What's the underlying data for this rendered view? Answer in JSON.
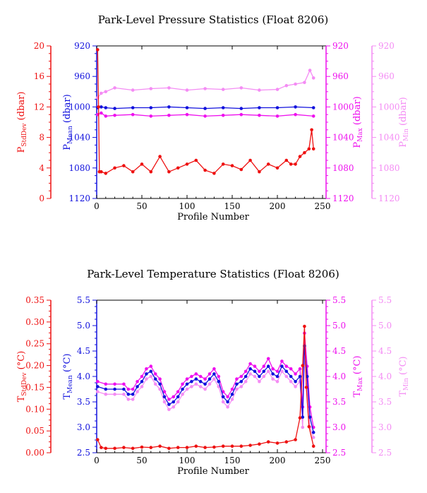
{
  "colors": {
    "stddev": "#ee1111",
    "mean": "#1111dd",
    "max": "#ee11ee",
    "min": "#f48cf4"
  },
  "chart_data": [
    {
      "type": "line",
      "title": "Park-Level Pressure Statistics (Float 8206)",
      "xlabel": "Profile Number",
      "xlim": [
        0,
        250
      ],
      "xticks": [
        "0",
        "50",
        "100",
        "150",
        "200",
        "250"
      ],
      "axes": {
        "stddev": {
          "label_main": "P",
          "label_sub": "StdDev",
          "label_unit": " (dbar)",
          "ylim": [
            0,
            20
          ],
          "ticks": [
            "0",
            "4",
            "8",
            "12",
            "16",
            "20"
          ]
        },
        "mean": {
          "label_main": "P",
          "label_sub": "Mean",
          "label_unit": " (dbar)",
          "ylim": [
            1120,
            920
          ],
          "ticks": [
            "1120",
            "1080",
            "1040",
            "1000",
            "960",
            "920"
          ]
        },
        "max": {
          "label_main": "P",
          "label_sub": "Max",
          "label_unit": " (dbar)",
          "ylim": [
            1120,
            920
          ],
          "ticks": [
            "1120",
            "1080",
            "1040",
            "1000",
            "960",
            "920"
          ]
        },
        "min": {
          "label_main": "P",
          "label_sub": "Min",
          "label_unit": " (dbar)",
          "ylim": [
            1120,
            920
          ],
          "ticks": [
            "1120",
            "1080",
            "1040",
            "1000",
            "960",
            "920"
          ]
        }
      },
      "series": [
        {
          "key": "stddev",
          "x": [
            1,
            2,
            3,
            5,
            10,
            20,
            30,
            40,
            50,
            60,
            70,
            80,
            90,
            100,
            110,
            120,
            130,
            140,
            150,
            160,
            170,
            180,
            190,
            200,
            210,
            215,
            220,
            225,
            230,
            235,
            238,
            240
          ],
          "values": [
            19.5,
            12,
            3.5,
            3.5,
            3.3,
            4,
            4.3,
            3.5,
            4.5,
            3.5,
            5.5,
            3.5,
            4,
            4.5,
            5,
            3.7,
            3.3,
            4.5,
            4.3,
            3.8,
            5,
            3.5,
            4.5,
            4,
            5,
            4.5,
            4.5,
            5.5,
            6,
            6.5,
            9,
            6.5
          ]
        },
        {
          "key": "mean",
          "x": [
            1,
            5,
            10,
            20,
            40,
            60,
            80,
            100,
            120,
            140,
            160,
            180,
            200,
            220,
            240
          ],
          "values": [
            1001,
            1000,
            1001,
            1002,
            1001,
            1001,
            1000,
            1001,
            1002,
            1001,
            1002,
            1001,
            1001,
            1000,
            1001
          ]
        },
        {
          "key": "max",
          "x": [
            1,
            5,
            10,
            20,
            40,
            60,
            80,
            100,
            120,
            140,
            160,
            180,
            200,
            220,
            240
          ],
          "values": [
            1010,
            1008,
            1012,
            1011,
            1010,
            1012,
            1011,
            1010,
            1012,
            1011,
            1010,
            1011,
            1012,
            1010,
            1012
          ]
        },
        {
          "key": "min",
          "x": [
            1,
            5,
            10,
            20,
            40,
            60,
            80,
            100,
            120,
            140,
            160,
            180,
            200,
            210,
            220,
            230,
            236,
            240
          ],
          "values": [
            988,
            982,
            980,
            975,
            978,
            976,
            975,
            978,
            976,
            977,
            975,
            978,
            977,
            972,
            970,
            968,
            952,
            962
          ]
        }
      ]
    },
    {
      "type": "line",
      "title": "Park-Level Temperature Statistics (Float 8206)",
      "xlabel": "Profile Number",
      "xlim": [
        0,
        250
      ],
      "xticks": [
        "0",
        "50",
        "100",
        "150",
        "200",
        "250"
      ],
      "axes": {
        "stddev": {
          "label_main": "T",
          "label_sub": "StdDev",
          "label_unit": " (°C)",
          "ylim": [
            0,
            0.35
          ],
          "ticks": [
            "0.00",
            "0.05",
            "0.10",
            "0.15",
            "0.20",
            "0.25",
            "0.30",
            "0.35"
          ]
        },
        "mean": {
          "label_main": "T",
          "label_sub": "Mean",
          "label_unit": " (°C)",
          "ylim": [
            2.5,
            5.5
          ],
          "ticks": [
            "2.5",
            "3.0",
            "3.5",
            "4.0",
            "4.5",
            "5.0",
            "5.5"
          ]
        },
        "max": {
          "label_main": "T",
          "label_sub": "Max",
          "label_unit": " (°C)",
          "ylim": [
            2.5,
            5.5
          ],
          "ticks": [
            "2.5",
            "3.0",
            "3.5",
            "4.0",
            "4.5",
            "5.0",
            "5.5"
          ]
        },
        "min": {
          "label_main": "T",
          "label_sub": "Min",
          "label_unit": " (°C)",
          "ylim": [
            2.5,
            5.5
          ],
          "ticks": [
            "2.5",
            "3.0",
            "3.5",
            "4.0",
            "4.5",
            "5.0",
            "5.5"
          ]
        }
      },
      "series": [
        {
          "key": "stddev",
          "x": [
            1,
            5,
            10,
            20,
            30,
            40,
            50,
            60,
            70,
            80,
            90,
            100,
            110,
            120,
            130,
            140,
            150,
            160,
            170,
            180,
            190,
            200,
            210,
            220,
            225,
            228,
            230,
            232,
            235,
            240
          ],
          "values": [
            0.03,
            0.012,
            0.01,
            0.01,
            0.012,
            0.01,
            0.013,
            0.012,
            0.015,
            0.01,
            0.012,
            0.012,
            0.015,
            0.012,
            0.013,
            0.015,
            0.015,
            0.015,
            0.017,
            0.02,
            0.025,
            0.022,
            0.025,
            0.03,
            0.08,
            0.2,
            0.29,
            0.15,
            0.06,
            0.015
          ]
        },
        {
          "key": "mean",
          "x": [
            1,
            10,
            20,
            30,
            35,
            40,
            45,
            50,
            55,
            60,
            65,
            70,
            75,
            80,
            85,
            90,
            95,
            100,
            105,
            110,
            115,
            120,
            125,
            130,
            135,
            140,
            145,
            150,
            155,
            160,
            165,
            170,
            175,
            180,
            185,
            190,
            195,
            200,
            205,
            210,
            215,
            220,
            225,
            228,
            230,
            233,
            236,
            240
          ],
          "values": [
            3.8,
            3.75,
            3.75,
            3.75,
            3.65,
            3.65,
            3.8,
            3.9,
            4.05,
            4.1,
            3.95,
            3.85,
            3.6,
            3.45,
            3.5,
            3.6,
            3.75,
            3.85,
            3.9,
            3.95,
            3.9,
            3.85,
            3.95,
            4.05,
            3.9,
            3.6,
            3.5,
            3.65,
            3.85,
            3.9,
            4.0,
            4.15,
            4.1,
            4.0,
            4.1,
            4.2,
            4.05,
            4.0,
            4.2,
            4.1,
            4.0,
            3.9,
            4.0,
            3.2,
            4.6,
            4.0,
            3.2,
            2.9
          ]
        },
        {
          "key": "max",
          "x": [
            1,
            10,
            20,
            30,
            35,
            40,
            45,
            50,
            55,
            60,
            65,
            70,
            75,
            80,
            85,
            90,
            95,
            100,
            105,
            110,
            115,
            120,
            125,
            130,
            135,
            140,
            145,
            150,
            155,
            160,
            165,
            170,
            175,
            180,
            185,
            190,
            195,
            200,
            205,
            210,
            215,
            220,
            225,
            228,
            230,
            233,
            236,
            240
          ],
          "values": [
            3.9,
            3.85,
            3.85,
            3.85,
            3.75,
            3.75,
            3.9,
            4.0,
            4.15,
            4.2,
            4.05,
            3.95,
            3.7,
            3.55,
            3.6,
            3.7,
            3.85,
            3.95,
            4.0,
            4.05,
            4.0,
            3.95,
            4.05,
            4.15,
            4.0,
            3.7,
            3.6,
            3.75,
            3.95,
            4.0,
            4.1,
            4.25,
            4.2,
            4.1,
            4.2,
            4.35,
            4.15,
            4.1,
            4.3,
            4.2,
            4.15,
            4.05,
            4.15,
            3.4,
            4.85,
            4.2,
            3.4,
            3.0
          ]
        },
        {
          "key": "min",
          "x": [
            1,
            10,
            20,
            30,
            35,
            40,
            45,
            50,
            55,
            60,
            65,
            70,
            75,
            80,
            85,
            90,
            95,
            100,
            105,
            110,
            115,
            120,
            125,
            130,
            135,
            140,
            145,
            150,
            155,
            160,
            165,
            170,
            175,
            180,
            185,
            190,
            195,
            200,
            205,
            210,
            215,
            220,
            225,
            228,
            230,
            233,
            236,
            240
          ],
          "values": [
            3.7,
            3.65,
            3.65,
            3.65,
            3.55,
            3.55,
            3.7,
            3.8,
            3.95,
            4.0,
            3.85,
            3.75,
            3.5,
            3.35,
            3.4,
            3.5,
            3.65,
            3.75,
            3.8,
            3.85,
            3.8,
            3.75,
            3.85,
            3.95,
            3.8,
            3.5,
            3.4,
            3.55,
            3.75,
            3.8,
            3.9,
            4.05,
            4.0,
            3.9,
            4.0,
            4.1,
            3.95,
            3.9,
            4.1,
            4.0,
            3.9,
            3.8,
            3.9,
            3.0,
            4.4,
            3.85,
            3.0,
            2.8
          ]
        }
      ]
    }
  ]
}
